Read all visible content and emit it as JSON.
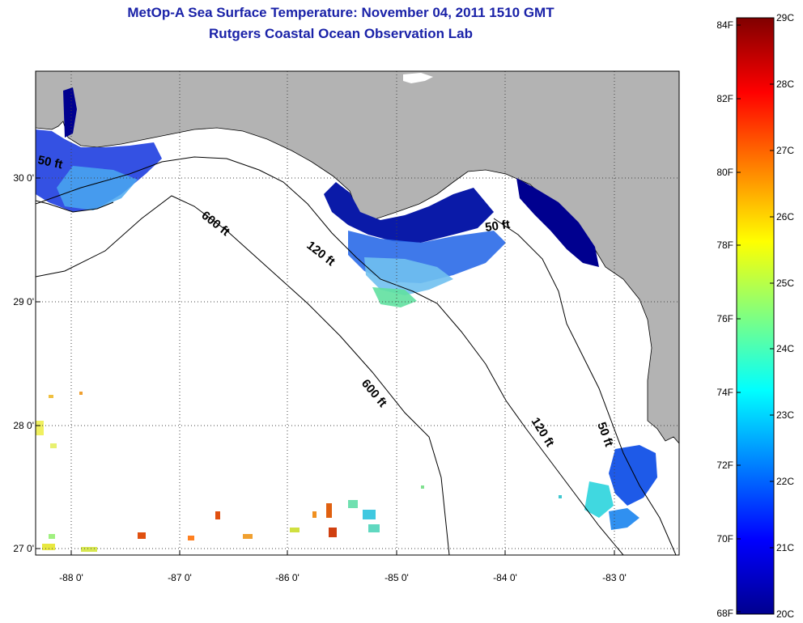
{
  "header": {
    "title": "MetOp-A Sea Surface Temperature:  November 04, 2011 1510 GMT",
    "subtitle": "Rutgers Coastal Ocean Observation Lab"
  },
  "map": {
    "lat_labels": [
      "30 0'",
      "29 0'",
      "28 0'",
      "27 0'"
    ],
    "lon_labels": [
      "-88 0'",
      "-87 0'",
      "-86 0'",
      "-85 0'",
      "-84 0'",
      "-83 0'"
    ],
    "contour_labels": {
      "c50_west": "50 ft",
      "c600_a": "600 ft",
      "c120_a": "120 ft",
      "c50_bigbend": "50 ft",
      "c600_b": "600 ft",
      "c120_b": "120 ft",
      "c50_south": "50 ft"
    },
    "colors": {
      "land": "#b3b3b3",
      "water_no_data": "#ffffff",
      "cold": "#00008f",
      "warm": "#800000"
    }
  },
  "colorbar": {
    "fahrenheit_ticks": [
      "84F",
      "82F",
      "80F",
      "78F",
      "76F",
      "74F",
      "72F",
      "70F",
      "68F"
    ],
    "celsius_ticks": [
      "29C",
      "28C",
      "27C",
      "26C",
      "25C",
      "24C",
      "23C",
      "22C",
      "21C",
      "20C"
    ],
    "gradient": [
      "#800000",
      "#ff0000",
      "#ff8000",
      "#ffff00",
      "#80ff80",
      "#00ffff",
      "#0080ff",
      "#0000ff",
      "#00008f"
    ]
  }
}
